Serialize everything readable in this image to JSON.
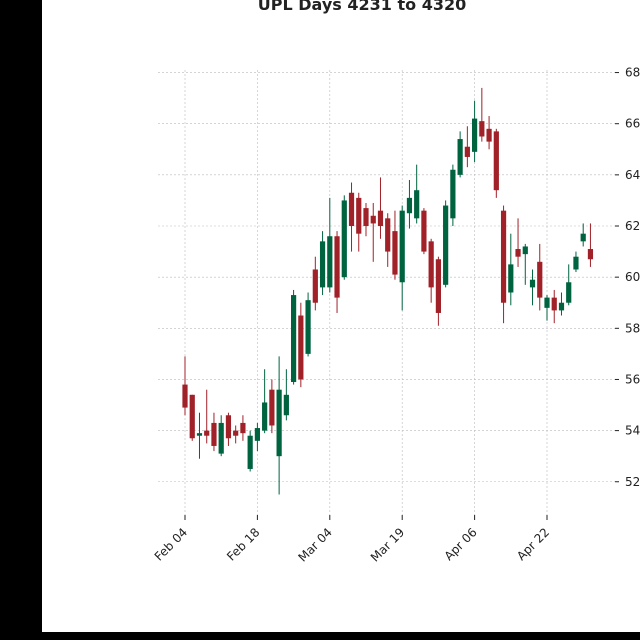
{
  "chart_data": {
    "type": "candlestick",
    "title": "UPL Days 4231 to 4320",
    "categories": [
      "Feb 04",
      null,
      null,
      null,
      null,
      null,
      null,
      null,
      null,
      null,
      "Feb 18",
      null,
      null,
      null,
      null,
      null,
      null,
      null,
      null,
      null,
      "Mar 04",
      null,
      null,
      null,
      null,
      null,
      null,
      null,
      null,
      null,
      "Mar 19",
      null,
      null,
      null,
      null,
      null,
      null,
      null,
      null,
      null,
      "Apr 06",
      null,
      null,
      null,
      null,
      null,
      null,
      null,
      null,
      null,
      "Apr 22",
      null,
      null,
      null,
      null,
      null,
      null
    ],
    "open": [
      55.8,
      55.4,
      53.8,
      54.0,
      54.3,
      53.1,
      54.6,
      54.0,
      54.3,
      52.5,
      53.6,
      54.0,
      55.6,
      53.0,
      54.6,
      55.9,
      58.5,
      57.0,
      60.3,
      59.6,
      59.6,
      61.6,
      60.0,
      63.3,
      63.1,
      62.7,
      62.4,
      62.6,
      62.3,
      61.8,
      59.8,
      62.5,
      62.3,
      62.6,
      61.4,
      60.7,
      59.7,
      62.3,
      64.0,
      65.1,
      64.9,
      66.1,
      65.8,
      65.7,
      62.6,
      59.4,
      61.1,
      60.9,
      59.6,
      60.6,
      58.8,
      59.2,
      58.7,
      59.0,
      60.3,
      61.4,
      61.1
    ],
    "high": [
      56.9,
      55.4,
      54.7,
      55.6,
      54.7,
      54.6,
      54.7,
      54.2,
      54.6,
      54.0,
      54.3,
      56.4,
      56.0,
      56.9,
      56.4,
      59.5,
      59.0,
      59.4,
      60.8,
      61.8,
      63.1,
      61.8,
      63.2,
      63.7,
      63.3,
      62.9,
      62.9,
      63.9,
      62.5,
      62.6,
      62.8,
      63.8,
      64.4,
      62.7,
      61.5,
      60.8,
      63.0,
      64.4,
      65.7,
      65.9,
      66.9,
      67.4,
      66.3,
      65.8,
      62.8,
      61.7,
      62.3,
      61.3,
      60.3,
      61.3,
      59.3,
      59.5,
      59.4,
      60.5,
      61.0,
      62.1,
      62.1
    ],
    "low": [
      54.6,
      53.6,
      52.9,
      53.5,
      53.2,
      53.0,
      53.4,
      53.5,
      53.6,
      52.4,
      53.2,
      53.9,
      53.9,
      51.5,
      54.4,
      55.8,
      55.7,
      56.9,
      58.7,
      59.3,
      59.4,
      58.6,
      59.9,
      61.0,
      61.0,
      61.6,
      60.6,
      61.5,
      60.4,
      59.9,
      58.7,
      61.9,
      62.1,
      60.9,
      59.0,
      58.1,
      59.6,
      62.0,
      63.9,
      64.3,
      64.5,
      65.3,
      65.0,
      63.1,
      58.2,
      58.9,
      60.4,
      59.7,
      58.9,
      58.7,
      58.3,
      58.2,
      58.5,
      58.9,
      60.2,
      61.2,
      60.4
    ],
    "close": [
      54.9,
      53.7,
      53.9,
      53.8,
      53.4,
      54.3,
      53.7,
      53.8,
      53.9,
      53.8,
      54.1,
      55.1,
      54.2,
      55.6,
      55.4,
      59.3,
      56.0,
      59.1,
      59.0,
      61.4,
      61.6,
      59.2,
      63.0,
      62.0,
      61.7,
      62.0,
      62.1,
      62.0,
      61.0,
      60.1,
      62.6,
      63.1,
      63.4,
      61.0,
      59.6,
      58.6,
      62.8,
      64.2,
      65.4,
      64.7,
      66.2,
      65.5,
      65.3,
      63.4,
      59.0,
      60.5,
      60.8,
      61.2,
      59.9,
      59.2,
      59.2,
      58.7,
      59.0,
      59.8,
      60.8,
      61.7,
      60.7
    ],
    "up_color": "#006340",
    "down_color": "#a02128",
    "ylim": [
      50.7,
      68.1
    ],
    "yticks": [
      52,
      54,
      56,
      58,
      60,
      62,
      64,
      66,
      68
    ],
    "y_axis_position": "right",
    "grid": true
  }
}
